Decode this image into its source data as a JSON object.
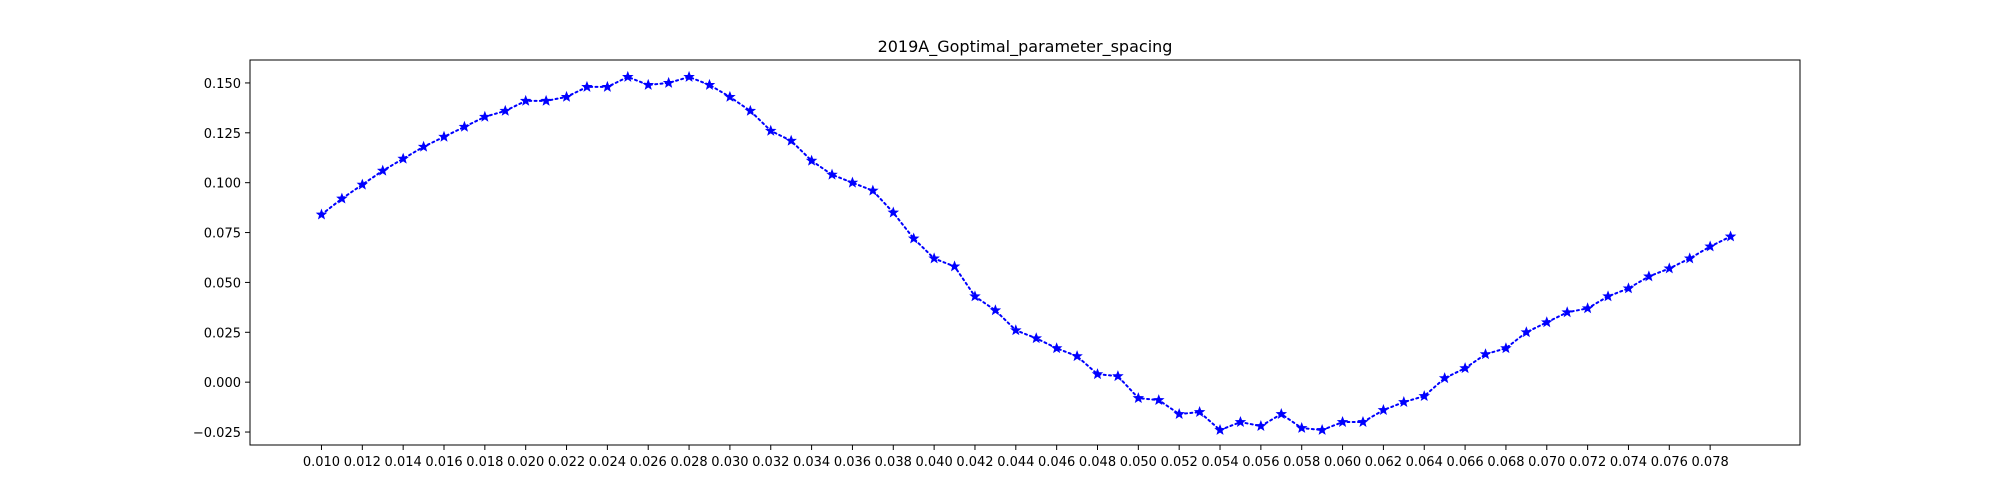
{
  "chart_data": {
    "type": "line",
    "title": "2019A_Goptimal_parameter_spacing",
    "xlabel": "",
    "ylabel": "",
    "xlim": [
      0.0065,
      0.0824
    ],
    "ylim": [
      -0.0315,
      0.1615
    ],
    "x_ticks": [
      0.01,
      0.012,
      0.014,
      0.016,
      0.018,
      0.02,
      0.022,
      0.024,
      0.026,
      0.028,
      0.03,
      0.032,
      0.034,
      0.036,
      0.038,
      0.04,
      0.042,
      0.044,
      0.046,
      0.048,
      0.05,
      0.052,
      0.054,
      0.056,
      0.058,
      0.06,
      0.062,
      0.064,
      0.066,
      0.068,
      0.07,
      0.072,
      0.074,
      0.076,
      0.078
    ],
    "x_tick_labels": [
      "0.010",
      "0.012",
      "0.014",
      "0.016",
      "0.018",
      "0.020",
      "0.022",
      "0.024",
      "0.026",
      "0.028",
      "0.030",
      "0.032",
      "0.034",
      "0.036",
      "0.038",
      "0.040",
      "0.042",
      "0.044",
      "0.046",
      "0.048",
      "0.050",
      "0.052",
      "0.054",
      "0.056",
      "0.058",
      "0.060",
      "0.062",
      "0.064",
      "0.066",
      "0.068",
      "0.070",
      "0.072",
      "0.074",
      "0.076",
      "0.078"
    ],
    "y_ticks": [
      -0.025,
      0.0,
      0.025,
      0.05,
      0.075,
      0.1,
      0.125,
      0.15
    ],
    "y_tick_labels": [
      "−0.025",
      "0.000",
      "0.025",
      "0.050",
      "0.075",
      "0.100",
      "0.125",
      "0.150"
    ],
    "grid": false,
    "legend": "none",
    "series": [
      {
        "color": "#0000ff",
        "line_style": "dotted",
        "marker": "star",
        "x": [
          0.01,
          0.011,
          0.012,
          0.013,
          0.014,
          0.015,
          0.016,
          0.017,
          0.018,
          0.019,
          0.02,
          0.021,
          0.022,
          0.023,
          0.024,
          0.025,
          0.026,
          0.027,
          0.028,
          0.029,
          0.03,
          0.031,
          0.032,
          0.033,
          0.034,
          0.035,
          0.036,
          0.037,
          0.038,
          0.039,
          0.04,
          0.041,
          0.042,
          0.043,
          0.044,
          0.045,
          0.046,
          0.047,
          0.048,
          0.049,
          0.05,
          0.051,
          0.052,
          0.053,
          0.054,
          0.055,
          0.056,
          0.057,
          0.058,
          0.059,
          0.06,
          0.061,
          0.062,
          0.063,
          0.064,
          0.065,
          0.066,
          0.067,
          0.068,
          0.069,
          0.07,
          0.071,
          0.072,
          0.073,
          0.074,
          0.075,
          0.076,
          0.077,
          0.078,
          0.079
        ],
        "y": [
          0.084,
          0.092,
          0.099,
          0.106,
          0.112,
          0.118,
          0.123,
          0.128,
          0.133,
          0.136,
          0.141,
          0.141,
          0.143,
          0.148,
          0.148,
          0.153,
          0.149,
          0.15,
          0.153,
          0.149,
          0.143,
          0.136,
          0.126,
          0.121,
          0.111,
          0.104,
          0.1,
          0.096,
          0.085,
          0.072,
          0.062,
          0.058,
          0.043,
          0.036,
          0.026,
          0.022,
          0.017,
          0.013,
          0.004,
          0.003,
          -0.008,
          -0.009,
          -0.016,
          -0.015,
          -0.024,
          -0.02,
          -0.022,
          -0.016,
          -0.023,
          -0.024,
          -0.02,
          -0.02,
          -0.014,
          -0.01,
          -0.007,
          0.002,
          0.007,
          0.014,
          0.017,
          0.025,
          0.03,
          0.035,
          0.037,
          0.043,
          0.047,
          0.053,
          0.057,
          0.062,
          0.068,
          0.073
        ]
      }
    ]
  }
}
